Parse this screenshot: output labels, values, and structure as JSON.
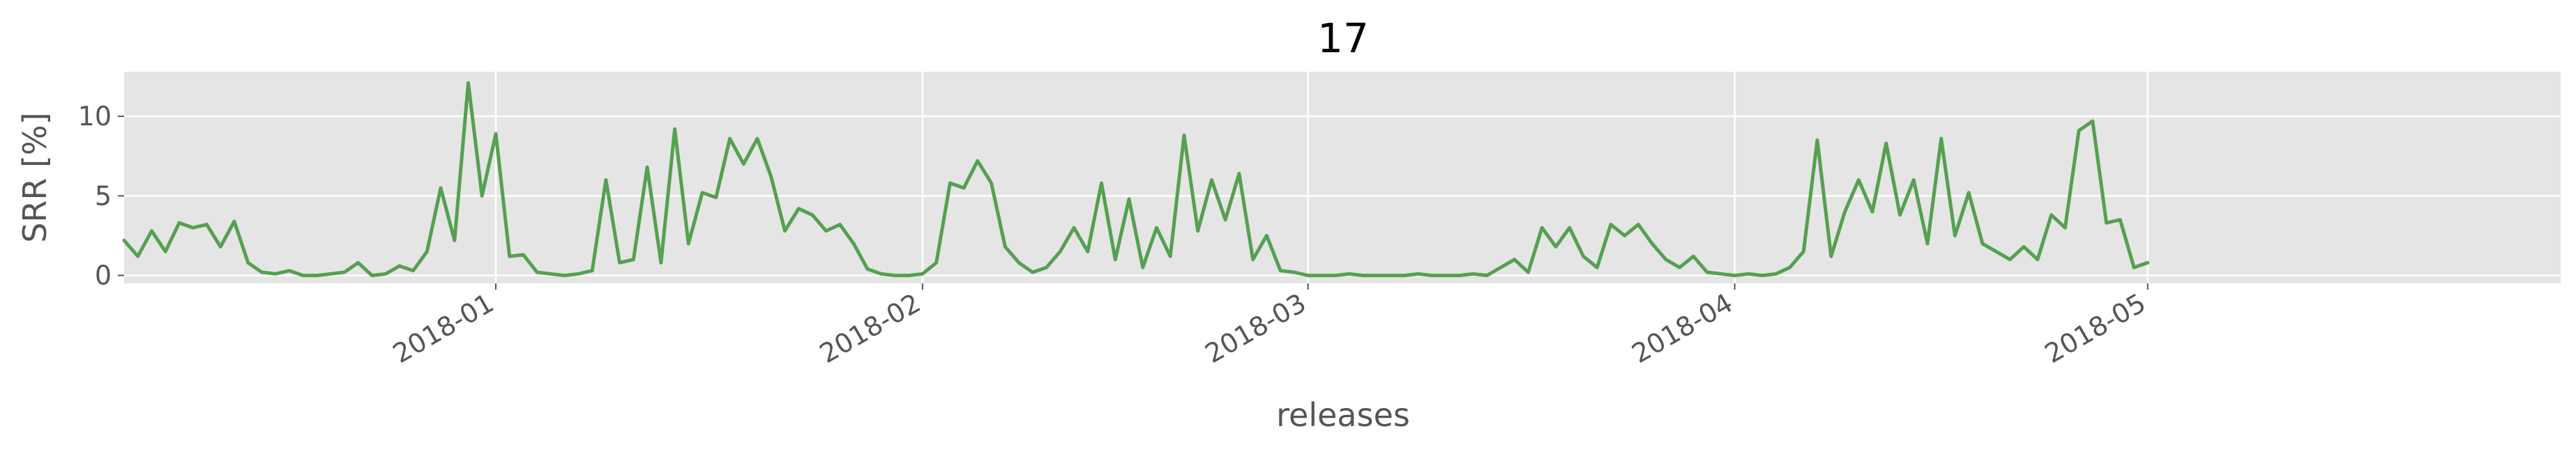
{
  "chart_data": {
    "type": "line",
    "title": "17",
    "xlabel": "releases",
    "ylabel": "SRR [%]",
    "x_range": [
      "2017-12-05",
      "2018-05-31"
    ],
    "ylim": [
      -0.5,
      12.8
    ],
    "x_ticks": [
      {
        "date": "2018-01-01",
        "label": "2018-01"
      },
      {
        "date": "2018-02-01",
        "label": "2018-02"
      },
      {
        "date": "2018-03-01",
        "label": "2018-03"
      },
      {
        "date": "2018-04-01",
        "label": "2018-04"
      },
      {
        "date": "2018-05-01",
        "label": "2018-05"
      }
    ],
    "y_ticks": [
      0,
      5,
      10
    ],
    "grid": true,
    "background_color": "#e5e5e5",
    "grid_color": "#ffffff",
    "series": [
      {
        "color": "#55a051",
        "points": [
          [
            "2017-12-05",
            2.2
          ],
          [
            "2017-12-06",
            1.2
          ],
          [
            "2017-12-07",
            2.8
          ],
          [
            "2017-12-08",
            1.5
          ],
          [
            "2017-12-09",
            3.3
          ],
          [
            "2017-12-10",
            3.0
          ],
          [
            "2017-12-11",
            3.2
          ],
          [
            "2017-12-12",
            1.8
          ],
          [
            "2017-12-13",
            3.4
          ],
          [
            "2017-12-14",
            0.8
          ],
          [
            "2017-12-15",
            0.2
          ],
          [
            "2017-12-16",
            0.1
          ],
          [
            "2017-12-17",
            0.3
          ],
          [
            "2017-12-18",
            0.0
          ],
          [
            "2017-12-19",
            0.0
          ],
          [
            "2017-12-20",
            0.1
          ],
          [
            "2017-12-21",
            0.2
          ],
          [
            "2017-12-22",
            0.8
          ],
          [
            "2017-12-23",
            0.0
          ],
          [
            "2017-12-24",
            0.1
          ],
          [
            "2017-12-25",
            0.6
          ],
          [
            "2017-12-26",
            0.3
          ],
          [
            "2017-12-27",
            1.5
          ],
          [
            "2017-12-28",
            5.5
          ],
          [
            "2017-12-29",
            2.2
          ],
          [
            "2017-12-30",
            12.1
          ],
          [
            "2017-12-31",
            5.0
          ],
          [
            "2018-01-01",
            8.9
          ],
          [
            "2018-01-02",
            1.2
          ],
          [
            "2018-01-03",
            1.3
          ],
          [
            "2018-01-04",
            0.2
          ],
          [
            "2018-01-05",
            0.1
          ],
          [
            "2018-01-06",
            0.0
          ],
          [
            "2018-01-07",
            0.1
          ],
          [
            "2018-01-08",
            0.3
          ],
          [
            "2018-01-09",
            6.0
          ],
          [
            "2018-01-10",
            0.8
          ],
          [
            "2018-01-11",
            1.0
          ],
          [
            "2018-01-12",
            6.8
          ],
          [
            "2018-01-13",
            0.8
          ],
          [
            "2018-01-14",
            9.2
          ],
          [
            "2018-01-15",
            2.0
          ],
          [
            "2018-01-16",
            5.2
          ],
          [
            "2018-01-17",
            4.9
          ],
          [
            "2018-01-18",
            8.6
          ],
          [
            "2018-01-19",
            7.0
          ],
          [
            "2018-01-20",
            8.6
          ],
          [
            "2018-01-21",
            6.2
          ],
          [
            "2018-01-22",
            2.8
          ],
          [
            "2018-01-23",
            4.2
          ],
          [
            "2018-01-24",
            3.8
          ],
          [
            "2018-01-25",
            2.8
          ],
          [
            "2018-01-26",
            3.2
          ],
          [
            "2018-01-27",
            2.0
          ],
          [
            "2018-01-28",
            0.4
          ],
          [
            "2018-01-29",
            0.1
          ],
          [
            "2018-01-30",
            0.0
          ],
          [
            "2018-01-31",
            0.0
          ],
          [
            "2018-02-01",
            0.1
          ],
          [
            "2018-02-02",
            0.8
          ],
          [
            "2018-02-03",
            5.8
          ],
          [
            "2018-02-04",
            5.5
          ],
          [
            "2018-02-05",
            7.2
          ],
          [
            "2018-02-06",
            5.8
          ],
          [
            "2018-02-07",
            1.8
          ],
          [
            "2018-02-08",
            0.8
          ],
          [
            "2018-02-09",
            0.2
          ],
          [
            "2018-02-10",
            0.5
          ],
          [
            "2018-02-11",
            1.5
          ],
          [
            "2018-02-12",
            3.0
          ],
          [
            "2018-02-13",
            1.5
          ],
          [
            "2018-02-14",
            5.8
          ],
          [
            "2018-02-15",
            1.0
          ],
          [
            "2018-02-16",
            4.8
          ],
          [
            "2018-02-17",
            0.5
          ],
          [
            "2018-02-18",
            3.0
          ],
          [
            "2018-02-19",
            1.2
          ],
          [
            "2018-02-20",
            8.8
          ],
          [
            "2018-02-21",
            2.8
          ],
          [
            "2018-02-22",
            6.0
          ],
          [
            "2018-02-23",
            3.5
          ],
          [
            "2018-02-24",
            6.4
          ],
          [
            "2018-02-25",
            1.0
          ],
          [
            "2018-02-26",
            2.5
          ],
          [
            "2018-02-27",
            0.3
          ],
          [
            "2018-02-28",
            0.2
          ],
          [
            "2018-03-01",
            0.0
          ],
          [
            "2018-03-02",
            0.0
          ],
          [
            "2018-03-03",
            0.0
          ],
          [
            "2018-03-04",
            0.1
          ],
          [
            "2018-03-05",
            0.0
          ],
          [
            "2018-03-06",
            0.0
          ],
          [
            "2018-03-07",
            0.0
          ],
          [
            "2018-03-08",
            0.0
          ],
          [
            "2018-03-09",
            0.1
          ],
          [
            "2018-03-10",
            0.0
          ],
          [
            "2018-03-11",
            0.0
          ],
          [
            "2018-03-12",
            0.0
          ],
          [
            "2018-03-13",
            0.1
          ],
          [
            "2018-03-14",
            0.0
          ],
          [
            "2018-03-15",
            0.5
          ],
          [
            "2018-03-16",
            1.0
          ],
          [
            "2018-03-17",
            0.2
          ],
          [
            "2018-03-18",
            3.0
          ],
          [
            "2018-03-19",
            1.8
          ],
          [
            "2018-03-20",
            3.0
          ],
          [
            "2018-03-21",
            1.2
          ],
          [
            "2018-03-22",
            0.5
          ],
          [
            "2018-03-23",
            3.2
          ],
          [
            "2018-03-24",
            2.5
          ],
          [
            "2018-03-25",
            3.2
          ],
          [
            "2018-03-26",
            2.0
          ],
          [
            "2018-03-27",
            1.0
          ],
          [
            "2018-03-28",
            0.5
          ],
          [
            "2018-03-29",
            1.2
          ],
          [
            "2018-03-30",
            0.2
          ],
          [
            "2018-03-31",
            0.1
          ],
          [
            "2018-04-01",
            0.0
          ],
          [
            "2018-04-02",
            0.1
          ],
          [
            "2018-04-03",
            0.0
          ],
          [
            "2018-04-04",
            0.1
          ],
          [
            "2018-04-05",
            0.5
          ],
          [
            "2018-04-06",
            1.5
          ],
          [
            "2018-04-07",
            8.5
          ],
          [
            "2018-04-08",
            1.2
          ],
          [
            "2018-04-09",
            4.0
          ],
          [
            "2018-04-10",
            6.0
          ],
          [
            "2018-04-11",
            4.0
          ],
          [
            "2018-04-12",
            8.3
          ],
          [
            "2018-04-13",
            3.8
          ],
          [
            "2018-04-14",
            6.0
          ],
          [
            "2018-04-15",
            2.0
          ],
          [
            "2018-04-16",
            8.6
          ],
          [
            "2018-04-17",
            2.5
          ],
          [
            "2018-04-18",
            5.2
          ],
          [
            "2018-04-19",
            2.0
          ],
          [
            "2018-04-20",
            1.5
          ],
          [
            "2018-04-21",
            1.0
          ],
          [
            "2018-04-22",
            1.8
          ],
          [
            "2018-04-23",
            1.0
          ],
          [
            "2018-04-24",
            3.8
          ],
          [
            "2018-04-25",
            3.0
          ],
          [
            "2018-04-26",
            9.1
          ],
          [
            "2018-04-27",
            9.7
          ],
          [
            "2018-04-28",
            3.3
          ],
          [
            "2018-04-29",
            3.5
          ],
          [
            "2018-04-30",
            0.5
          ],
          [
            "2018-05-01",
            0.8
          ]
        ]
      }
    ]
  }
}
